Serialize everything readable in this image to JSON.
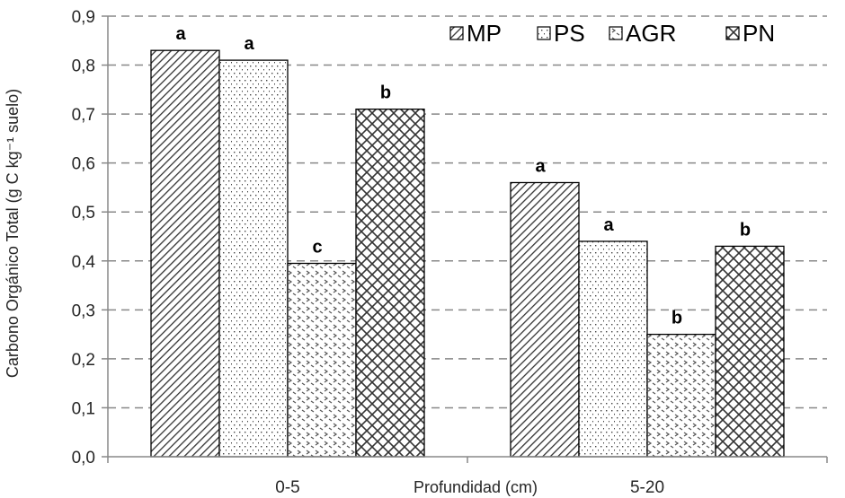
{
  "chart_data": {
    "type": "bar",
    "title": "",
    "xlabel": "Profundidad (cm)",
    "ylabel": "Carbono Orgánico Total (g C kg⁻¹ suelo)",
    "ylim": [
      0,
      0.9
    ],
    "ytick_labels": [
      "0,0",
      "0,1",
      "0,2",
      "0,3",
      "0,4",
      "0,5",
      "0,6",
      "0,7",
      "0,8",
      "0,9"
    ],
    "grid": "horizontal dashed",
    "legend_position": "top-right",
    "categories": [
      "0-5",
      "5-20"
    ],
    "series": [
      {
        "name": "MP",
        "values": [
          0.83,
          0.56
        ],
        "letters": [
          "a",
          "a"
        ],
        "pattern": "diagonal-lines"
      },
      {
        "name": "PS",
        "values": [
          0.81,
          0.44
        ],
        "letters": [
          "a",
          "a"
        ],
        "pattern": "dots"
      },
      {
        "name": "AGR",
        "values": [
          0.395,
          0.25
        ],
        "letters": [
          "c",
          "b"
        ],
        "pattern": "arrows"
      },
      {
        "name": "PN",
        "values": [
          0.71,
          0.43
        ],
        "letters": [
          "b",
          "b"
        ],
        "pattern": "crosshatch"
      }
    ],
    "colors": {
      "bar_stroke": "#000000",
      "grid": "#888888",
      "axis": "#888888",
      "text": "#262626"
    }
  }
}
